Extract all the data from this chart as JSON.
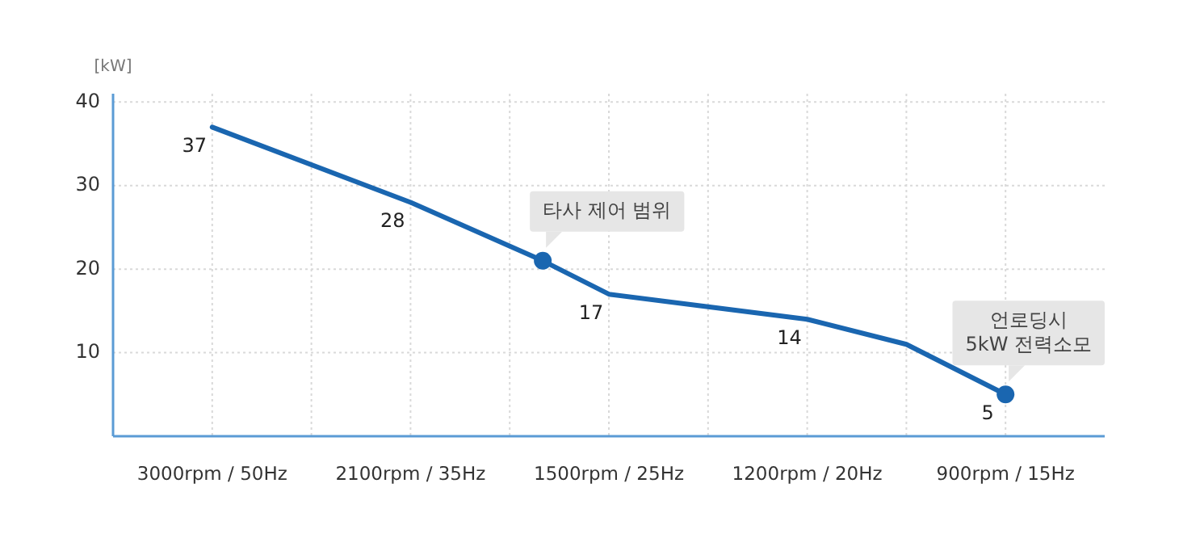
{
  "chart_data": {
    "type": "line",
    "ylabel": "[kW]",
    "categories": [
      "3000rpm / 50Hz",
      null,
      null,
      null,
      null,
      null,
      "2100rpm / 35Hz",
      null,
      null,
      null,
      null,
      null,
      "1500rpm / 25Hz",
      null,
      null,
      null,
      null,
      null,
      "1200rpm / 20Hz",
      null,
      null,
      null,
      null,
      null,
      "900rpm / 15Hz"
    ],
    "ylim": [
      0,
      41
    ],
    "yticks": [
      10,
      20,
      30,
      40
    ],
    "grid": true,
    "line_style": "solid",
    "series": [
      {
        "color": "#1a66b0",
        "values": [
          37,
          null,
          null,
          null,
          null,
          null,
          28,
          null,
          null,
          null,
          21,
          null,
          17,
          null,
          null,
          15.5,
          null,
          null,
          14,
          null,
          null,
          11,
          null,
          null,
          5
        ],
        "value_labels": [
          "37",
          null,
          null,
          null,
          null,
          null,
          "28",
          null,
          null,
          null,
          null,
          null,
          "17",
          null,
          null,
          null,
          null,
          null,
          "14",
          null,
          null,
          null,
          null,
          null,
          "5"
        ]
      },
      {
        "type": "scatter",
        "marker": "circle",
        "color": "#1a66b0",
        "values": [
          null,
          null,
          null,
          null,
          null,
          null,
          null,
          null,
          null,
          null,
          21,
          null,
          null,
          null,
          null,
          null,
          null,
          null,
          null,
          null,
          null,
          null,
          null,
          null,
          5
        ]
      }
    ],
    "annotations": [
      "타사 제어 범위",
      "언로딩시\n5kW 전력소모"
    ]
  }
}
